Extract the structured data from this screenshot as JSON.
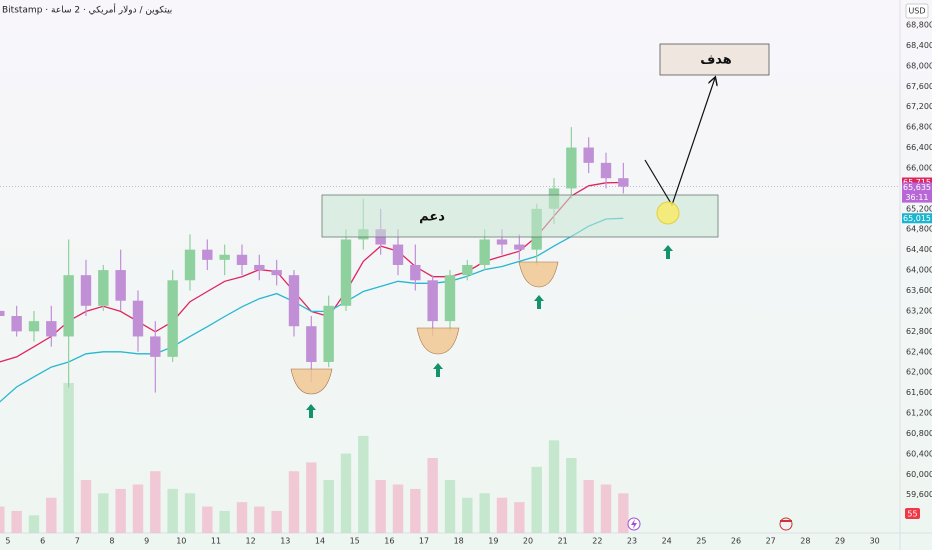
{
  "chart_data": {
    "type": "candlestick",
    "title": "Bitstamp · بيتكوين / دولار أمريكي · 2 ساعة",
    "currency": "USD",
    "grid": false,
    "up_color": "#8fd19e",
    "down_color": "#c08fd6",
    "volume_up_color": "#b6e2c1",
    "volume_down_color": "#f2b8cc",
    "xlim": [
      4.77,
      30.73
    ],
    "ylim": [
      58850,
      69290
    ],
    "xticks": [
      5,
      6,
      7,
      8,
      9,
      10,
      11,
      12,
      13,
      14,
      15,
      16,
      17,
      18,
      19,
      20,
      21,
      22,
      23,
      24,
      25,
      26,
      27,
      28,
      29,
      30
    ],
    "yticks": [
      {
        "value": 59600,
        "label": "59,600"
      },
      {
        "value": 60000,
        "label": "60,000"
      },
      {
        "value": 60400,
        "label": "60,400"
      },
      {
        "value": 60800,
        "label": "60,800"
      },
      {
        "value": 61200,
        "label": "61,200"
      },
      {
        "value": 61600,
        "label": "61,600"
      },
      {
        "value": 62000,
        "label": "62,000"
      },
      {
        "value": 62400,
        "label": "62,400"
      },
      {
        "value": 62800,
        "label": "62,800"
      },
      {
        "value": 63200,
        "label": "63,200"
      },
      {
        "value": 63600,
        "label": "63,600"
      },
      {
        "value": 64000,
        "label": "64,000"
      },
      {
        "value": 64400,
        "label": "64,400"
      },
      {
        "value": 64800,
        "label": "64,800"
      },
      {
        "value": 65200,
        "label": "65,200"
      },
      {
        "value": 65600,
        "label": "65,600"
      },
      {
        "value": 66000,
        "label": "66,000"
      },
      {
        "value": 66400,
        "label": "66,400"
      },
      {
        "value": 66800,
        "label": "66,800"
      },
      {
        "value": 67200,
        "label": "67,200"
      },
      {
        "value": 67600,
        "label": "67,600"
      },
      {
        "value": 68000,
        "label": "68,000"
      },
      {
        "value": 68400,
        "label": "68,400"
      },
      {
        "value": 68800,
        "label": "68,800"
      }
    ],
    "x": [
      4.75,
      5.25,
      5.75,
      6.25,
      6.75,
      7.25,
      7.75,
      8.25,
      8.75,
      9.25,
      9.75,
      10.25,
      10.75,
      11.25,
      11.75,
      12.25,
      12.75,
      13.25,
      13.75,
      14.25,
      14.75,
      15.25,
      15.75,
      16.25,
      16.75,
      17.25,
      17.75,
      18.25,
      18.75,
      19.25,
      19.75,
      20.25,
      20.75,
      21.25,
      21.75,
      22.25,
      22.75
    ],
    "open": [
      63200,
      63100,
      62800,
      63000,
      62700,
      63900,
      63300,
      64000,
      63400,
      62700,
      62300,
      63800,
      64400,
      64200,
      64300,
      64100,
      64000,
      63900,
      62900,
      62200,
      63300,
      64600,
      64800,
      64500,
      64100,
      63800,
      63000,
      63900,
      64100,
      64600,
      64500,
      64400,
      65200,
      65600,
      66400,
      66100,
      65800
    ],
    "high": [
      63500,
      63300,
      63200,
      63300,
      64600,
      64200,
      64100,
      64400,
      63600,
      63000,
      64000,
      64700,
      64600,
      64500,
      64500,
      64300,
      64200,
      64000,
      63100,
      63500,
      64800,
      65400,
      65200,
      64800,
      64500,
      63900,
      64000,
      64200,
      64800,
      64800,
      64700,
      65300,
      65800,
      66800,
      66600,
      66300,
      66100
    ],
    "low": [
      62900,
      62700,
      62600,
      62500,
      61700,
      63100,
      63200,
      63200,
      62400,
      61600,
      62200,
      63600,
      64000,
      63900,
      63900,
      63800,
      63700,
      62700,
      61800,
      62100,
      63200,
      64400,
      64300,
      63900,
      63600,
      62700,
      62800,
      63800,
      64000,
      64300,
      64200,
      64100,
      64900,
      65400,
      65900,
      65600,
      65500
    ],
    "close": [
      63100,
      62800,
      63000,
      62700,
      63900,
      63300,
      64000,
      63400,
      62700,
      62300,
      63800,
      64400,
      64200,
      64300,
      64100,
      64000,
      63900,
      62900,
      62200,
      63300,
      64600,
      64800,
      64500,
      64100,
      63800,
      63000,
      63900,
      64100,
      64600,
      64500,
      64400,
      65200,
      65600,
      66400,
      66100,
      65800,
      65635
    ],
    "volume": [
      30,
      25,
      20,
      40,
      170,
      60,
      45,
      50,
      55,
      70,
      50,
      45,
      30,
      25,
      35,
      30,
      25,
      70,
      80,
      60,
      90,
      110,
      60,
      55,
      50,
      85,
      60,
      40,
      45,
      40,
      35,
      75,
      105,
      85,
      60,
      55,
      45
    ],
    "moving_averages": [
      {
        "color": "#e0245e",
        "values": [
          62200,
          62300,
          62500,
          62700,
          63000,
          63190,
          63290,
          63190,
          62990,
          62790,
          62990,
          63380,
          63580,
          63780,
          63870,
          64010,
          63970,
          63580,
          63190,
          63090,
          63580,
          64170,
          64470,
          64370,
          64070,
          63870,
          63870,
          63970,
          64170,
          64270,
          64370,
          64660,
          65060,
          65450,
          65650,
          65710,
          65715
        ]
      },
      {
        "color": "#26b7d0",
        "values": [
          61410,
          61710,
          61910,
          62100,
          62200,
          62360,
          62400,
          62400,
          62360,
          62360,
          62500,
          62700,
          62890,
          63090,
          63280,
          63440,
          63540,
          63380,
          63190,
          63190,
          63380,
          63580,
          63680,
          63780,
          63740,
          63740,
          63780,
          63880,
          64010,
          64070,
          64170,
          64270,
          64470,
          64660,
          64860,
          65000,
          65015
        ]
      }
    ],
    "price_labels": [
      {
        "value": 65715,
        "label": "65,715",
        "color": "#e0245e"
      },
      {
        "value": 65635,
        "label": "65,635",
        "countdown": "36:11",
        "color": "#b868d6"
      },
      {
        "value": 65015,
        "label": "65,015",
        "color": "#1cb5cf"
      }
    ],
    "annotations": {
      "support": "دعم",
      "target": "هدف"
    },
    "alert_badge": "55"
  }
}
